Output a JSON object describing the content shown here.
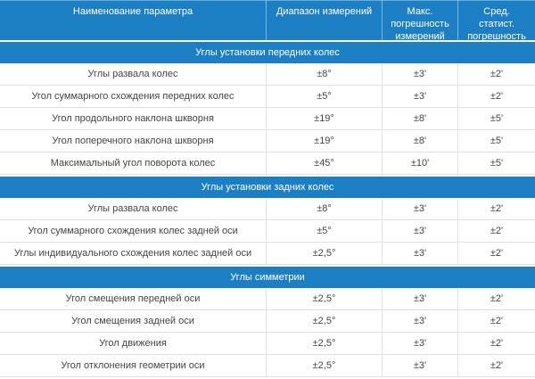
{
  "table": {
    "columns": [
      "Наименование параметра",
      "Диапазон измерений",
      "Макс. погрешность измерений",
      "Сред. статист. погрешность"
    ],
    "sections": [
      {
        "title": "Углы установки передних колес",
        "rows": [
          {
            "parameter": "Углы развала колес",
            "range": "±8°",
            "max_error": "±3'",
            "avg_error": "±2'"
          },
          {
            "parameter": "Угол суммарного схождения передних колес",
            "range": "±5°",
            "max_error": "±3'",
            "avg_error": "±2'"
          },
          {
            "parameter": "Угол продольного наклона шкворня",
            "range": "±19°",
            "max_error": "±8'",
            "avg_error": "±5'"
          },
          {
            "parameter": "Угол поперечного наклона шкворня",
            "range": "±19°",
            "max_error": "±8'",
            "avg_error": "±5'"
          },
          {
            "parameter": "Максимальный угол поворота колес",
            "range": "±45°",
            "max_error": "±10'",
            "avg_error": "±5'"
          }
        ]
      },
      {
        "title": "Углы установки задних колес",
        "rows": [
          {
            "parameter": "Углы развала колес",
            "range": "±8°",
            "max_error": "±3'",
            "avg_error": "±2'"
          },
          {
            "parameter": "Угол суммарного схождения колес задней оси",
            "range": "±5°",
            "max_error": "±3'",
            "avg_error": "±2'"
          },
          {
            "parameter": "Углы индивидуального схождения колес задней оси",
            "range": "±2,5°",
            "max_error": "±3'",
            "avg_error": "±2'"
          }
        ]
      },
      {
        "title": "Углы симметрии",
        "rows": [
          {
            "parameter": "Угол смещения передней оси",
            "range": "±2,5°",
            "max_error": "±3'",
            "avg_error": "±2'"
          },
          {
            "parameter": "Угол смещения задней оси",
            "range": "±2,5°",
            "max_error": "±3'",
            "avg_error": "±2'"
          },
          {
            "parameter": "Угол движения",
            "range": "±2,5°",
            "max_error": "±3'",
            "avg_error": "±2'"
          },
          {
            "parameter": "Угол отклонения геометрии оси",
            "range": "±2,5°",
            "max_error": "±3'",
            "avg_error": "±2'"
          }
        ]
      }
    ],
    "colors": {
      "header_bg": "#1d7fc3",
      "row_border": "#e1e1e1",
      "body_text": "#444444",
      "header_text": "#ffffff"
    }
  }
}
